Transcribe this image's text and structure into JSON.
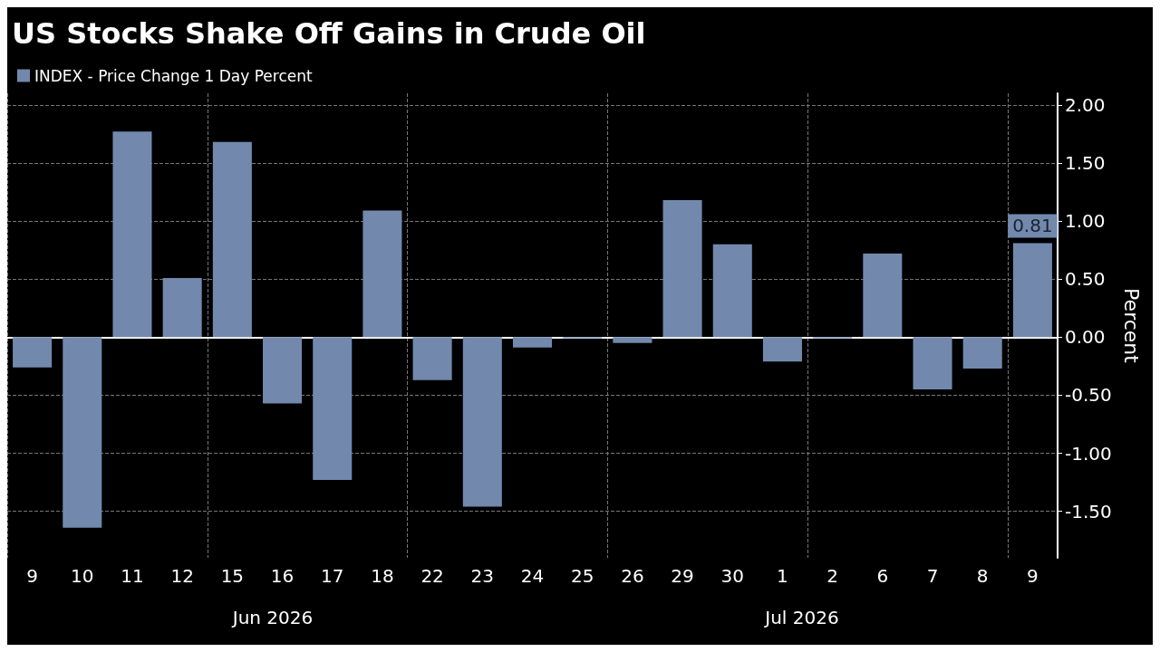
{
  "chart_data": {
    "type": "bar",
    "title": "US Stocks Shake Off Gains in Crude Oil",
    "categories": [
      "9",
      "10",
      "11",
      "12",
      "15",
      "16",
      "17",
      "18",
      "22",
      "23",
      "24",
      "25",
      "26",
      "29",
      "30",
      "1",
      "2",
      "6",
      "7",
      "8",
      "9"
    ],
    "series": [
      {
        "name": "INDEX - Price Change 1 Day Percent",
        "color": "#7289ad",
        "values": [
          -0.26,
          -1.64,
          1.77,
          0.51,
          1.68,
          -0.57,
          -1.23,
          1.09,
          -0.37,
          -1.46,
          -0.09,
          -0.01,
          -0.05,
          1.18,
          0.8,
          -0.21,
          -0.01,
          0.72,
          -0.45,
          -0.27,
          0.81
        ],
        "value_labels": [
          null,
          null,
          null,
          null,
          null,
          null,
          null,
          null,
          null,
          null,
          null,
          null,
          null,
          null,
          null,
          null,
          null,
          null,
          null,
          null,
          "0.81"
        ]
      }
    ],
    "ylabel": "Percent",
    "ylim": [
      -1.9,
      2.1
    ],
    "yticks": [
      {
        "value": -1.5,
        "label": "-1.50"
      },
      {
        "value": -1,
        "label": "-1.00"
      },
      {
        "value": -0.5,
        "label": "-0.50"
      },
      {
        "value": 0,
        "label": "0.00"
      },
      {
        "value": 0.5,
        "label": "0.50"
      },
      {
        "value": 1,
        "label": "1.00"
      },
      {
        "value": 1.5,
        "label": "1.50"
      },
      {
        "value": 2,
        "label": "2.00"
      }
    ],
    "annotations": [
      "Jun 2026",
      "Jul 2026"
    ],
    "grid": true,
    "legend": "top left"
  }
}
